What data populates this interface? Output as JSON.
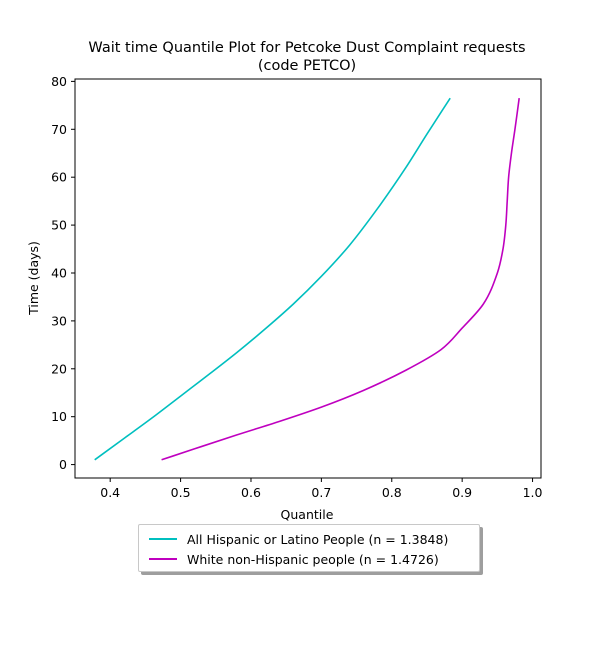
{
  "chart_data": {
    "type": "line",
    "title": "Wait time Quantile Plot for Petcoke Dust Complaint  requests",
    "subtitle": "(code PETCO)",
    "xlabel": "Quantile",
    "ylabel": "Time (days)",
    "xlim": [
      0.35,
      1.012
    ],
    "ylim": [
      -2.8,
      80.5
    ],
    "xticks": [
      0.4,
      0.5,
      0.6,
      0.7,
      0.8,
      0.9,
      1.0
    ],
    "xtick_labels": [
      "0.4",
      "0.5",
      "0.6",
      "0.7",
      "0.8",
      "0.9",
      "1.0"
    ],
    "yticks": [
      0,
      10,
      20,
      30,
      40,
      50,
      60,
      70,
      80
    ],
    "ytick_labels": [
      "0",
      "10",
      "20",
      "30",
      "40",
      "50",
      "60",
      "70",
      "80"
    ],
    "grid": false,
    "legend_position": "below",
    "series": [
      {
        "name": "All Hispanic or Latino People (n = 1.3848)",
        "color": "#00bfbf",
        "x": [
          0.378,
          0.42,
          0.46,
          0.5,
          0.54,
          0.58,
          0.62,
          0.66,
          0.7,
          0.74,
          0.78,
          0.82,
          0.85,
          0.883
        ],
        "y": [
          1,
          5.5,
          9.8,
          14.3,
          18.8,
          23.4,
          28.3,
          33.5,
          39.3,
          45.8,
          53.5,
          62.0,
          69.0,
          76.5
        ]
      },
      {
        "name": "White non-Hispanic people (n = 1.4726)",
        "color": "#bf00bf",
        "x": [
          0.473,
          0.52,
          0.58,
          0.64,
          0.7,
          0.76,
          0.82,
          0.87,
          0.9,
          0.93,
          0.95,
          0.958,
          0.962,
          0.964,
          0.966,
          0.97,
          0.975,
          0.981
        ],
        "y": [
          1,
          3.3,
          6.2,
          9.0,
          12.0,
          15.5,
          19.7,
          24.0,
          28.5,
          33.5,
          40.0,
          45.0,
          50.0,
          55.0,
          60.0,
          65.0,
          70.0,
          76.5
        ]
      }
    ]
  }
}
